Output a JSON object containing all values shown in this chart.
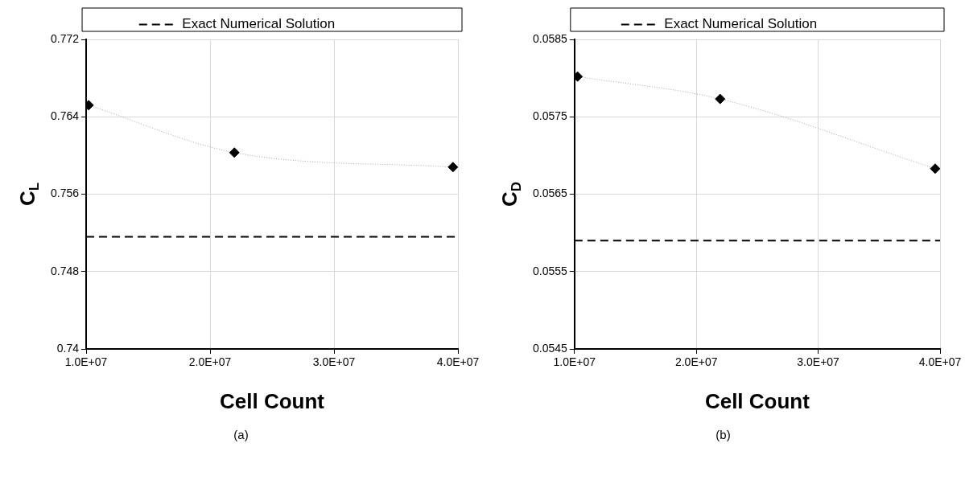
{
  "chart_data": [
    {
      "type": "line",
      "xlabel": "Cell Count",
      "ylabel": "C$_{L}$",
      "annotations": [
        "(a)"
      ],
      "xlim": [
        10000000,
        40000000
      ],
      "xticks": [
        {
          "value": 10000000,
          "label": "1.0E+07"
        },
        {
          "value": 20000000,
          "label": "2.0E+07"
        },
        {
          "value": 30000000,
          "label": "3.0E+07"
        },
        {
          "value": 40000000,
          "label": "4.0E+07"
        }
      ],
      "ylim": [
        0.74,
        0.772
      ],
      "yticks": [
        0.74,
        0.748,
        0.756,
        0.764,
        0.772
      ],
      "grid": true,
      "legend": "top",
      "series": [
        {
          "color": "#000000",
          "x": [
            10200000,
            21960000,
            39600000
          ],
          "values": [
            0.7652,
            0.7603,
            0.7588
          ],
          "marker": "diamond",
          "line_style": "dotted"
        },
        {
          "name": "Exact Numerical Solution",
          "color": "#000000",
          "x": [
            10000000,
            40000000
          ],
          "values": [
            0.7516,
            0.7516
          ],
          "marker": "none",
          "line_style": "dashed"
        }
      ]
    },
    {
      "type": "line",
      "xlabel": "Cell Count",
      "ylabel": "C$_{D}$",
      "annotations": [
        "(b)"
      ],
      "xlim": [
        10000000,
        40000000
      ],
      "xticks": [
        {
          "value": 10000000,
          "label": "1.0E+07"
        },
        {
          "value": 20000000,
          "label": "2.0E+07"
        },
        {
          "value": 30000000,
          "label": "3.0E+07"
        },
        {
          "value": 40000000,
          "label": "4.0E+07"
        }
      ],
      "ylim": [
        0.0545,
        0.0585
      ],
      "yticks": [
        0.0545,
        0.0555,
        0.0565,
        0.0575,
        0.0585
      ],
      "grid": true,
      "legend": "top",
      "series": [
        {
          "color": "#000000",
          "x": [
            10250000,
            21950000,
            39600000
          ],
          "values": [
            0.05802,
            0.05773,
            0.05683
          ],
          "marker": "diamond",
          "line_style": "dotted"
        },
        {
          "name": "Exact Numerical Solution",
          "color": "#000000",
          "x": [
            10000000,
            40000000
          ],
          "values": [
            0.0559,
            0.0559
          ],
          "marker": "none",
          "line_style": "dashed"
        }
      ]
    }
  ]
}
